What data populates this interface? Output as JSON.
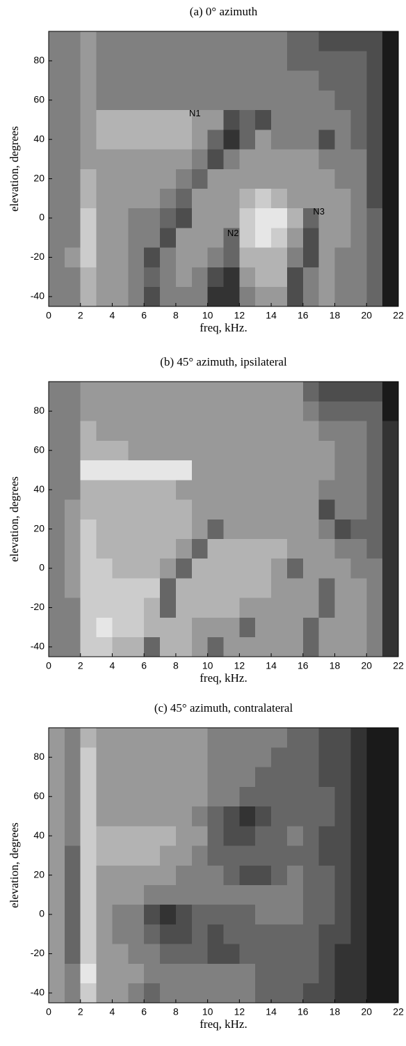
{
  "chart_data": [
    {
      "type": "heatmap",
      "title": "(a) 0° azimuth",
      "xlabel": "freq, kHz.",
      "ylabel": "elevation, degrees",
      "xlim": [
        0,
        22
      ],
      "ylim": [
        -45,
        95
      ],
      "zlim": [
        0,
        10
      ],
      "xticks": [
        0,
        2,
        4,
        6,
        8,
        10,
        12,
        14,
        16,
        18,
        20,
        22
      ],
      "yticks": [
        -40,
        -20,
        0,
        20,
        40,
        60,
        80
      ],
      "xedges": [
        0,
        1,
        2,
        3,
        4,
        5,
        6,
        7,
        8,
        9,
        10,
        11,
        12,
        13,
        14,
        15,
        16,
        17,
        18,
        19,
        20,
        21,
        22
      ],
      "yedges": [
        -45,
        -35,
        -25,
        -15,
        -5,
        5,
        15,
        25,
        35,
        45,
        55,
        65,
        75,
        85,
        95
      ],
      "annotations": [
        "N1",
        "N2",
        "N3"
      ],
      "z": [
        [
          5,
          5,
          7,
          6,
          6,
          5,
          3,
          5,
          5,
          5,
          2,
          2,
          5,
          6,
          6,
          3,
          5,
          6,
          5,
          5,
          4,
          1
        ],
        [
          5,
          5,
          7,
          6,
          6,
          5,
          4,
          5,
          6,
          5,
          3,
          2,
          6,
          7,
          7,
          3,
          5,
          6,
          5,
          5,
          4,
          1
        ],
        [
          5,
          6,
          8,
          6,
          6,
          5,
          3,
          5,
          6,
          6,
          5,
          4,
          7,
          7,
          7,
          5,
          3,
          6,
          5,
          5,
          4,
          1
        ],
        [
          5,
          5,
          8,
          6,
          6,
          5,
          5,
          3,
          6,
          6,
          6,
          4,
          8,
          9,
          8,
          6,
          3,
          6,
          6,
          5,
          4,
          1
        ],
        [
          5,
          5,
          8,
          6,
          6,
          5,
          5,
          4,
          3,
          6,
          6,
          6,
          8,
          9,
          9,
          7,
          4,
          6,
          6,
          5,
          4,
          1
        ],
        [
          5,
          5,
          7,
          6,
          6,
          6,
          6,
          5,
          4,
          6,
          6,
          6,
          7,
          8,
          7,
          6,
          6,
          6,
          6,
          5,
          3,
          1
        ],
        [
          5,
          5,
          7,
          6,
          6,
          6,
          6,
          6,
          5,
          4,
          6,
          6,
          6,
          6,
          6,
          6,
          6,
          6,
          5,
          5,
          3,
          1
        ],
        [
          5,
          5,
          6,
          6,
          6,
          6,
          6,
          6,
          6,
          5,
          3,
          5,
          6,
          6,
          6,
          6,
          6,
          5,
          5,
          5,
          3,
          1
        ],
        [
          5,
          5,
          6,
          7,
          7,
          7,
          7,
          7,
          7,
          6,
          4,
          2,
          4,
          6,
          5,
          5,
          5,
          3,
          5,
          4,
          3,
          1
        ],
        [
          5,
          5,
          6,
          7,
          7,
          7,
          7,
          7,
          7,
          6,
          6,
          3,
          4,
          3,
          5,
          5,
          5,
          5,
          5,
          4,
          3,
          1
        ],
        [
          5,
          5,
          6,
          5,
          5,
          5,
          5,
          5,
          5,
          5,
          5,
          5,
          5,
          5,
          5,
          5,
          5,
          5,
          4,
          4,
          3,
          1
        ],
        [
          5,
          5,
          6,
          5,
          5,
          5,
          5,
          5,
          5,
          5,
          5,
          5,
          5,
          5,
          5,
          5,
          5,
          4,
          4,
          4,
          3,
          1
        ],
        [
          5,
          5,
          6,
          5,
          5,
          5,
          5,
          5,
          5,
          5,
          5,
          5,
          5,
          5,
          5,
          4,
          4,
          4,
          4,
          4,
          3,
          1
        ],
        [
          5,
          5,
          6,
          5,
          5,
          5,
          5,
          5,
          5,
          5,
          5,
          5,
          5,
          5,
          5,
          4,
          4,
          3,
          3,
          3,
          3,
          1
        ]
      ]
    },
    {
      "type": "heatmap",
      "title": "(b) 45° azimuth, ipsilateral",
      "xlabel": "freq, kHz.",
      "ylabel": "elevation, degrees",
      "xlim": [
        0,
        22
      ],
      "ylim": [
        -45,
        95
      ],
      "zlim": [
        0,
        10
      ],
      "xticks": [
        0,
        2,
        4,
        6,
        8,
        10,
        12,
        14,
        16,
        18,
        20,
        22
      ],
      "yticks": [
        -40,
        -20,
        0,
        20,
        40,
        60,
        80
      ],
      "xedges": [
        0,
        1,
        2,
        3,
        4,
        5,
        6,
        7,
        8,
        9,
        10,
        11,
        12,
        13,
        14,
        15,
        16,
        17,
        18,
        19,
        20,
        21,
        22
      ],
      "yedges": [
        -45,
        -35,
        -25,
        -15,
        -5,
        5,
        15,
        25,
        35,
        45,
        55,
        65,
        75,
        85,
        95
      ],
      "z": [
        [
          5,
          5,
          8,
          8,
          7,
          7,
          4,
          7,
          7,
          6,
          4,
          6,
          6,
          6,
          6,
          6,
          4,
          6,
          6,
          6,
          5,
          2
        ],
        [
          5,
          5,
          8,
          9,
          8,
          8,
          7,
          7,
          7,
          6,
          6,
          6,
          4,
          6,
          6,
          6,
          4,
          6,
          6,
          6,
          5,
          2
        ],
        [
          5,
          5,
          8,
          8,
          8,
          8,
          7,
          4,
          7,
          7,
          7,
          7,
          6,
          6,
          6,
          6,
          6,
          4,
          6,
          6,
          5,
          2
        ],
        [
          5,
          6,
          8,
          8,
          8,
          8,
          8,
          4,
          7,
          7,
          7,
          7,
          7,
          7,
          6,
          6,
          6,
          4,
          6,
          6,
          5,
          2
        ],
        [
          5,
          6,
          8,
          8,
          7,
          7,
          7,
          6,
          4,
          7,
          7,
          7,
          7,
          7,
          6,
          4,
          6,
          6,
          6,
          5,
          5,
          2
        ],
        [
          5,
          6,
          8,
          7,
          7,
          7,
          7,
          7,
          6,
          4,
          7,
          7,
          7,
          7,
          7,
          6,
          6,
          6,
          5,
          5,
          4,
          2
        ],
        [
          5,
          6,
          8,
          7,
          7,
          7,
          7,
          7,
          7,
          6,
          4,
          6,
          6,
          6,
          6,
          6,
          6,
          5,
          3,
          4,
          4,
          2
        ],
        [
          5,
          6,
          7,
          7,
          7,
          7,
          7,
          7,
          7,
          6,
          6,
          6,
          6,
          6,
          6,
          6,
          6,
          3,
          5,
          5,
          4,
          2
        ],
        [
          5,
          5,
          7,
          7,
          7,
          7,
          7,
          7,
          6,
          6,
          6,
          6,
          6,
          6,
          6,
          6,
          6,
          5,
          5,
          5,
          4,
          2
        ],
        [
          5,
          5,
          9,
          9,
          9,
          9,
          9,
          9,
          9,
          6,
          6,
          6,
          6,
          6,
          6,
          6,
          6,
          6,
          5,
          5,
          4,
          2
        ],
        [
          5,
          5,
          7,
          7,
          7,
          6,
          6,
          6,
          6,
          6,
          6,
          6,
          6,
          6,
          6,
          6,
          6,
          6,
          5,
          5,
          4,
          2
        ],
        [
          5,
          5,
          7,
          6,
          6,
          6,
          6,
          6,
          6,
          6,
          6,
          6,
          6,
          6,
          6,
          6,
          6,
          5,
          5,
          5,
          4,
          2
        ],
        [
          5,
          5,
          6,
          6,
          6,
          6,
          6,
          6,
          6,
          6,
          6,
          6,
          6,
          6,
          6,
          6,
          5,
          4,
          4,
          4,
          4,
          1
        ],
        [
          5,
          5,
          6,
          6,
          6,
          6,
          6,
          6,
          6,
          6,
          6,
          6,
          6,
          6,
          6,
          6,
          4,
          3,
          3,
          3,
          3,
          1
        ]
      ]
    },
    {
      "type": "heatmap",
      "title": "(c) 45° azimuth, contralateral",
      "xlabel": "freq, kHz.",
      "ylabel": "elevation, degrees",
      "xlim": [
        0,
        22
      ],
      "ylim": [
        -45,
        95
      ],
      "zlim": [
        0,
        10
      ],
      "xticks": [
        0,
        2,
        4,
        6,
        8,
        10,
        12,
        14,
        16,
        18,
        20,
        22
      ],
      "yticks": [
        -40,
        -20,
        0,
        20,
        40,
        60,
        80
      ],
      "xedges": [
        0,
        1,
        2,
        3,
        4,
        5,
        6,
        7,
        8,
        9,
        10,
        11,
        12,
        13,
        14,
        15,
        16,
        17,
        18,
        19,
        20,
        21,
        22
      ],
      "yedges": [
        -45,
        -35,
        -25,
        -15,
        -5,
        5,
        15,
        25,
        35,
        45,
        55,
        65,
        75,
        85,
        95
      ],
      "z": [
        [
          6,
          5,
          8,
          6,
          6,
          5,
          4,
          5,
          5,
          5,
          5,
          5,
          5,
          4,
          4,
          4,
          3,
          3,
          2,
          2,
          1,
          1
        ],
        [
          6,
          5,
          9,
          6,
          6,
          6,
          5,
          5,
          5,
          5,
          5,
          5,
          5,
          4,
          4,
          4,
          4,
          3,
          2,
          2,
          1,
          1
        ],
        [
          6,
          4,
          8,
          6,
          6,
          5,
          5,
          4,
          4,
          4,
          3,
          3,
          4,
          4,
          4,
          4,
          4,
          3,
          2,
          2,
          1,
          1
        ],
        [
          6,
          4,
          8,
          6,
          5,
          5,
          4,
          3,
          3,
          4,
          3,
          4,
          4,
          4,
          4,
          4,
          4,
          3,
          3,
          2,
          1,
          1
        ],
        [
          6,
          4,
          8,
          6,
          5,
          5,
          3,
          2,
          3,
          4,
          4,
          4,
          4,
          5,
          5,
          5,
          4,
          4,
          3,
          2,
          1,
          1
        ],
        [
          6,
          4,
          8,
          6,
          6,
          6,
          5,
          5,
          5,
          5,
          5,
          5,
          5,
          5,
          5,
          5,
          4,
          4,
          3,
          2,
          1,
          1
        ],
        [
          6,
          4,
          8,
          6,
          6,
          6,
          6,
          6,
          5,
          5,
          5,
          4,
          3,
          3,
          4,
          5,
          4,
          4,
          3,
          2,
          1,
          1
        ],
        [
          6,
          4,
          8,
          7,
          7,
          7,
          7,
          6,
          6,
          5,
          4,
          4,
          4,
          4,
          4,
          4,
          4,
          3,
          3,
          2,
          1,
          1
        ],
        [
          6,
          5,
          8,
          7,
          7,
          7,
          7,
          7,
          6,
          6,
          4,
          3,
          3,
          4,
          4,
          5,
          4,
          3,
          3,
          2,
          1,
          1
        ],
        [
          6,
          5,
          8,
          6,
          6,
          6,
          6,
          6,
          6,
          5,
          4,
          3,
          2,
          3,
          4,
          4,
          4,
          4,
          3,
          2,
          1,
          1
        ],
        [
          6,
          5,
          8,
          6,
          6,
          6,
          6,
          6,
          6,
          6,
          5,
          5,
          4,
          4,
          4,
          4,
          4,
          4,
          3,
          2,
          1,
          1
        ],
        [
          6,
          5,
          8,
          6,
          6,
          6,
          6,
          6,
          6,
          6,
          5,
          5,
          5,
          4,
          4,
          4,
          4,
          3,
          3,
          2,
          1,
          1
        ],
        [
          6,
          5,
          8,
          6,
          6,
          6,
          6,
          6,
          6,
          6,
          5,
          5,
          5,
          5,
          4,
          4,
          4,
          3,
          3,
          2,
          1,
          1
        ],
        [
          6,
          5,
          7,
          6,
          6,
          6,
          6,
          6,
          6,
          6,
          5,
          5,
          5,
          5,
          5,
          4,
          4,
          3,
          3,
          2,
          1,
          1
        ]
      ]
    }
  ]
}
